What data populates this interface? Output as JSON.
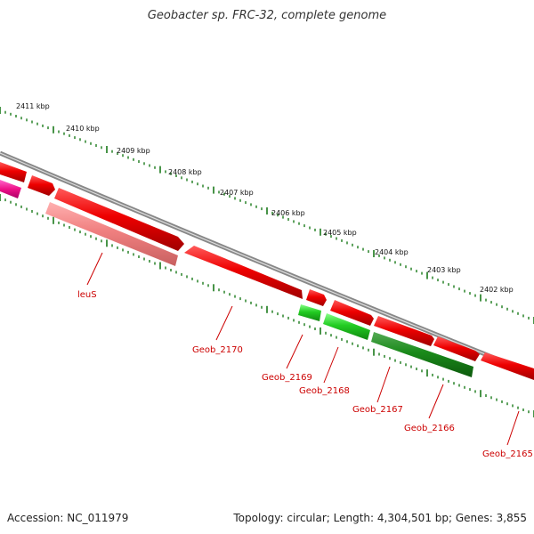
{
  "title": "Geobacter sp. FRC-32, complete genome",
  "footer": {
    "accession": "Accession: NC_011979",
    "summary": "Topology: circular; Length: 4,304,501 bp; Genes: 3,855"
  },
  "scale_labels": [
    "2411 kbp",
    "2410 kbp",
    "2409 kbp",
    "2408 kbp",
    "2407 kbp",
    "2406 kbp",
    "2405 kbp",
    "2404 kbp",
    "2403 kbp",
    "2402 kbp"
  ],
  "gene_labels": [
    "leuS",
    "Geob_2170",
    "Geob_2169",
    "Geob_2168",
    "Geob_2167",
    "Geob_2166",
    "Geob_2165"
  ],
  "colors": {
    "forward_gene": "#ee0000",
    "forward_gene_light": "#f08080",
    "reverse_gene": "#22cc22",
    "reverse_gene_dark": "#1a8a1a",
    "magenta_gene": "#ee1188",
    "backbone": "#808080",
    "scale_dots": "#1a7a1a",
    "gene_label": "#cc0000"
  }
}
